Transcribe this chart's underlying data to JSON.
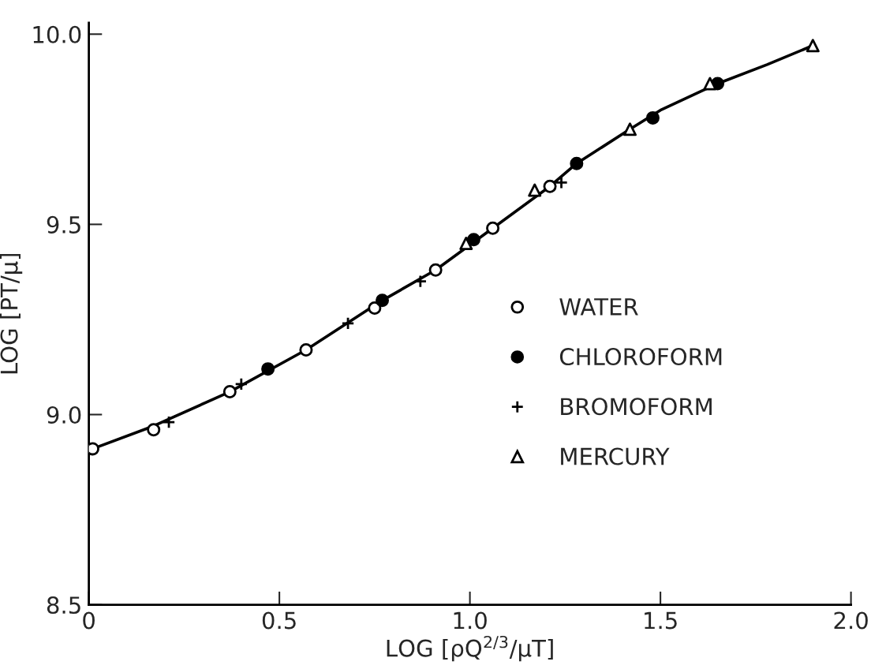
{
  "chart_data": {
    "type": "scatter",
    "xlabel": "LOG [ρQ$^{2/3}$/μT]",
    "ylabel": "LOG [PT/μ]",
    "xlim": [
      0,
      2.0
    ],
    "ylim": [
      8.5,
      10.03
    ],
    "xticks": [
      0,
      0.5,
      {
        "value": 1,
        "label": "1.0"
      },
      1.5,
      {
        "value": 2,
        "label": "2.0"
      }
    ],
    "yticks": [
      8.5,
      {
        "value": 9,
        "label": "9.0"
      },
      9.5,
      {
        "value": 10,
        "label": "10.0"
      }
    ],
    "grid": false,
    "legend": "center right",
    "series": [
      {
        "type": "line",
        "color": "#000000",
        "marker": "none",
        "line_style": "solid",
        "x": [
          0.01,
          0.17,
          0.37,
          0.57,
          0.77,
          0.91,
          1.06,
          1.21,
          1.28,
          1.42,
          1.5,
          1.65,
          1.78,
          1.9
        ],
        "values": [
          8.91,
          8.97,
          9.06,
          9.17,
          9.3,
          9.38,
          9.49,
          9.6,
          9.66,
          9.75,
          9.8,
          9.87,
          9.92,
          9.97
        ]
      },
      {
        "name": "WATER",
        "color": "#ffffff",
        "marker": "circle",
        "x": [
          0.01,
          0.17,
          0.37,
          0.57,
          0.75,
          0.91,
          1.06,
          1.21
        ],
        "values": [
          8.91,
          8.96,
          9.06,
          9.17,
          9.28,
          9.38,
          9.49,
          9.6
        ]
      },
      {
        "name": "CHLOROFORM",
        "color": "#000000",
        "marker": "circle",
        "x": [
          0.47,
          0.77,
          1.01,
          1.28,
          1.48,
          1.65
        ],
        "values": [
          9.12,
          9.3,
          9.46,
          9.66,
          9.78,
          9.87
        ]
      },
      {
        "name": "BROMOFORM",
        "color": "#000000",
        "marker": "cross",
        "x": [
          0.21,
          0.4,
          0.68,
          0.87,
          1.24
        ],
        "values": [
          8.98,
          9.08,
          9.24,
          9.35,
          9.61
        ]
      },
      {
        "name": "MERCURY",
        "color": "#ffffff",
        "marker": "triangle",
        "x": [
          0.99,
          1.17,
          1.42,
          1.63,
          1.9
        ],
        "values": [
          9.45,
          9.59,
          9.75,
          9.87,
          9.97
        ]
      }
    ]
  }
}
